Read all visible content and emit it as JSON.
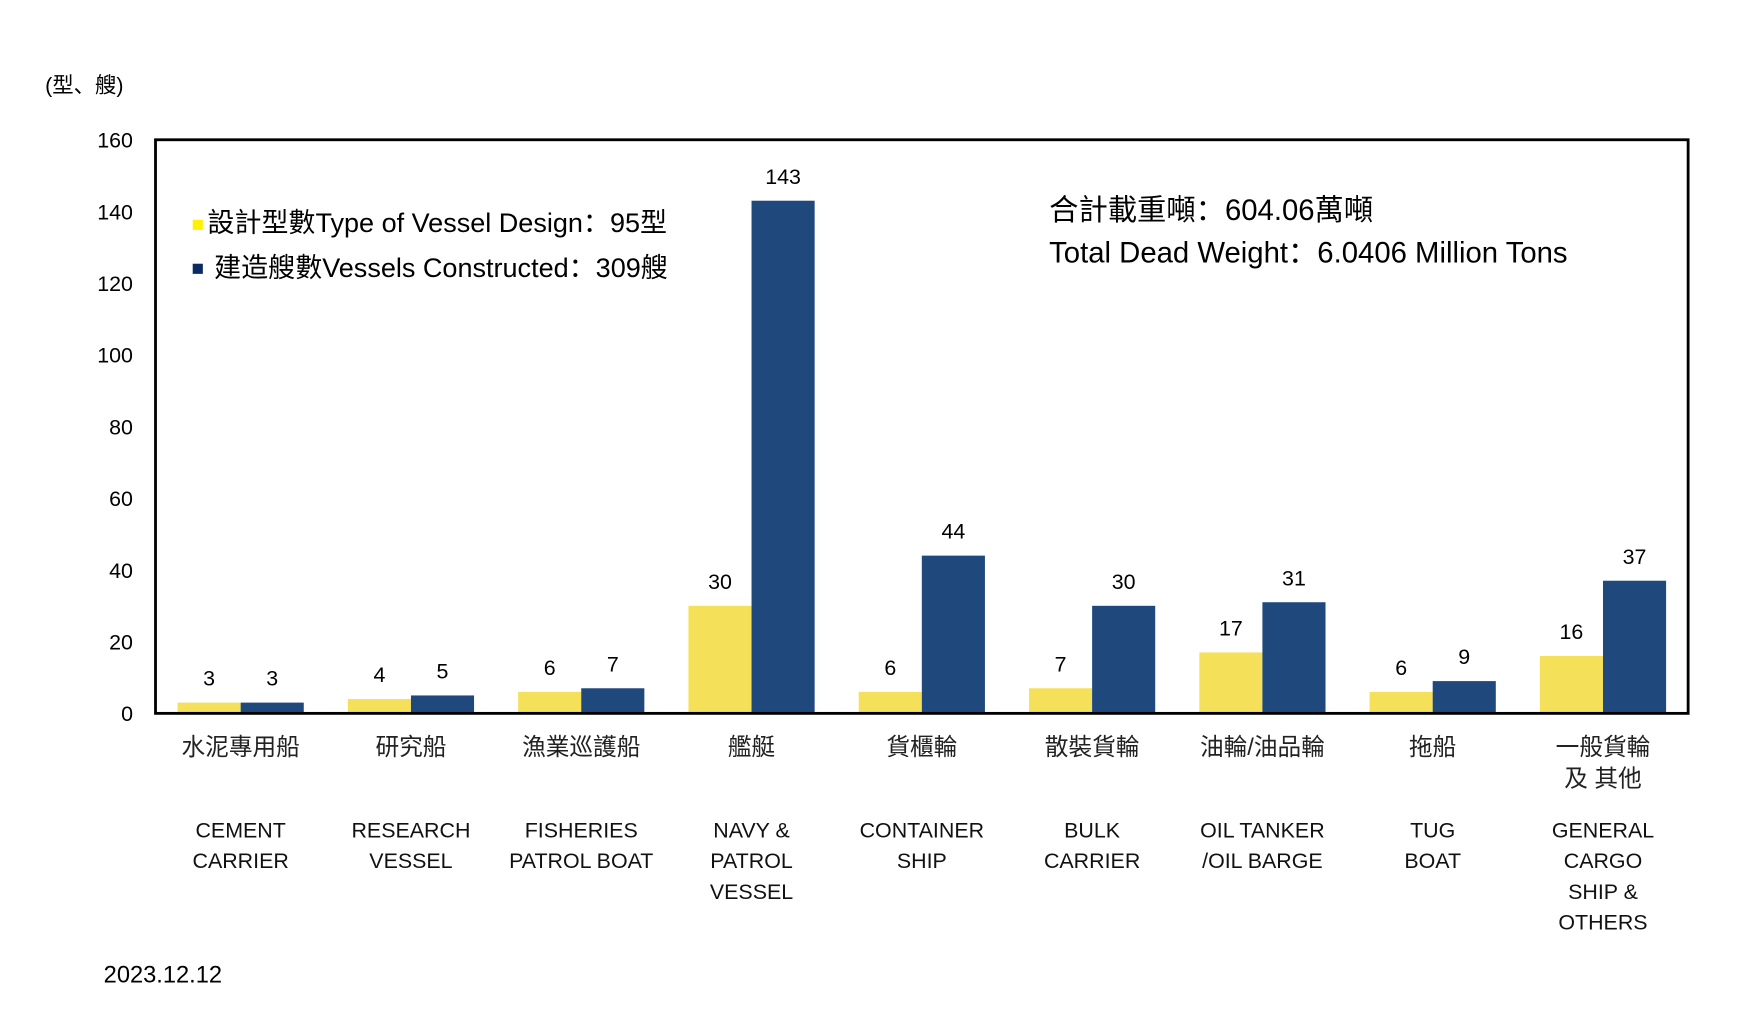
{
  "chart_data": {
    "type": "bar",
    "ylabel": "(型、艘)",
    "ylim": [
      0,
      160
    ],
    "yticks": [
      0,
      20,
      40,
      60,
      80,
      100,
      120,
      140,
      160
    ],
    "grid": false,
    "legend_position": "top-left",
    "categories_zh": [
      [
        "水泥專用船"
      ],
      [
        "研究船"
      ],
      [
        "漁業巡護船"
      ],
      [
        "艦艇"
      ],
      [
        "貨櫃輪"
      ],
      [
        "散裝貨輪"
      ],
      [
        "油輪/油品輪"
      ],
      [
        "拖船"
      ],
      [
        "一般貨輪",
        "及 其他"
      ]
    ],
    "categories_en": [
      [
        "CEMENT",
        "CARRIER"
      ],
      [
        "RESEARCH",
        "VESSEL"
      ],
      [
        "FISHERIES",
        "PATROL BOAT"
      ],
      [
        "NAVY &",
        "PATROL",
        "VESSEL"
      ],
      [
        "CONTAINER",
        "SHIP"
      ],
      [
        "BULK",
        "CARRIER"
      ],
      [
        "OIL TANKER",
        "/OIL BARGE"
      ],
      [
        "TUG",
        "BOAT"
      ],
      [
        "GENERAL",
        "CARGO",
        "SHIP &",
        "OTHERS"
      ]
    ],
    "series": [
      {
        "name": "設計型數Type of Vessel Design：95型",
        "color": "#F5E05A",
        "legend_color": "#FFF100",
        "values": [
          3,
          4,
          6,
          30,
          6,
          7,
          17,
          6,
          16
        ]
      },
      {
        "name": "建造艘數Vessels Constructed：309艘",
        "color": "#1F497D",
        "legend_color": "#0B2A63",
        "values": [
          3,
          5,
          7,
          143,
          44,
          30,
          31,
          9,
          37
        ]
      }
    ],
    "annotations": [
      "合計載重噸：604.06萬噸",
      "Total Dead Weight：6.0406 Million Tons"
    ]
  },
  "date": "2023.12.12"
}
